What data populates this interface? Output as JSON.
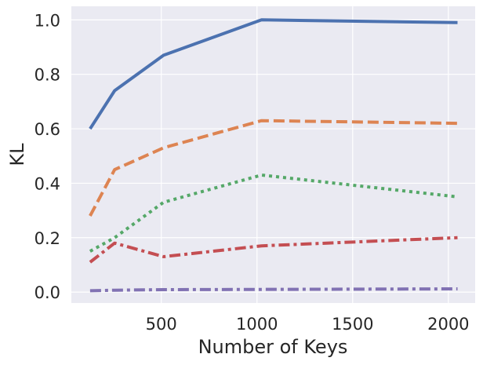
{
  "chart_data": {
    "type": "line",
    "title": "",
    "xlabel": "Number of Keys",
    "ylabel": "KL",
    "xlim": [
      30,
      2140
    ],
    "ylim": [
      -0.04,
      1.05
    ],
    "xticks": [
      500,
      1000,
      1500,
      2000
    ],
    "yticks": [
      0.0,
      0.2,
      0.4,
      0.6,
      0.8,
      1.0
    ],
    "xtick_labels": [
      "500",
      "1000",
      "1500",
      "2000"
    ],
    "ytick_labels": [
      "0.0",
      "0.2",
      "0.4",
      "0.6",
      "0.8",
      "1.0"
    ],
    "grid": true,
    "legend": "none",
    "x": [
      128,
      256,
      512,
      1024,
      2048
    ],
    "series": [
      {
        "values": [
          0.6,
          0.74,
          0.87,
          1.0,
          0.99
        ],
        "color": "#4c72b0",
        "dash": "solid"
      },
      {
        "values": [
          0.28,
          0.45,
          0.53,
          0.63,
          0.62
        ],
        "color": "#dd8452",
        "dash": "dashed"
      },
      {
        "values": [
          0.15,
          0.2,
          0.33,
          0.43,
          0.35
        ],
        "color": "#55a868",
        "dash": "dotted"
      },
      {
        "values": [
          0.11,
          0.18,
          0.13,
          0.17,
          0.2
        ],
        "color": "#c44e52",
        "dash": "dashdot"
      },
      {
        "values": [
          0.005,
          0.007,
          0.009,
          0.01,
          0.012
        ],
        "color": "#8172b3",
        "dash": "dashdot"
      }
    ]
  }
}
